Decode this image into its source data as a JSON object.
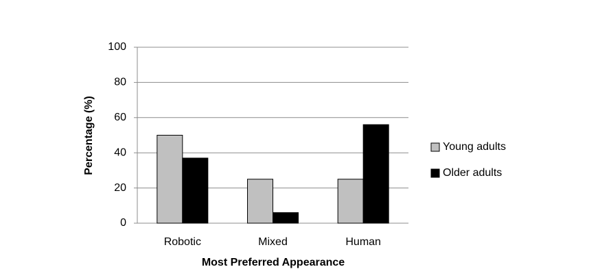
{
  "chart_data": {
    "type": "bar",
    "x_label": "Most Preferred Appearance",
    "y_label": "Percentage (%)",
    "categories": [
      "Robotic",
      "Mixed",
      "Human"
    ],
    "series": [
      {
        "name": "Young adults",
        "color": "#c0c0c0",
        "values": [
          50,
          25,
          25
        ]
      },
      {
        "name": "Older adults",
        "color": "#000000",
        "values": [
          37,
          6,
          56
        ]
      }
    ],
    "ylim": [
      0,
      100
    ],
    "yticks": [
      0,
      20,
      40,
      60,
      80,
      100
    ],
    "grid": true,
    "legend": "right"
  }
}
